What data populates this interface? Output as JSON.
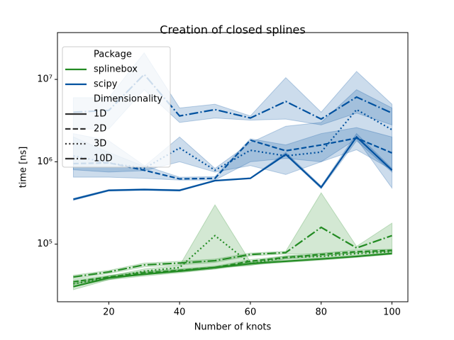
{
  "chart_data": {
    "type": "line",
    "title": "Creation of closed splines",
    "x_label": "Number of knots",
    "y_label": "time [ns]",
    "x": [
      10,
      20,
      30,
      40,
      50,
      60,
      70,
      80,
      90,
      100
    ],
    "xlim": [
      5.5,
      104.5
    ],
    "xticks": [
      20,
      40,
      60,
      80,
      100
    ],
    "ylim": [
      20000,
      37000000
    ],
    "yscale": "log",
    "yticks": [
      {
        "value": 100000,
        "label": "10⁵"
      },
      {
        "value": 1000000,
        "label": "10⁶"
      },
      {
        "value": 10000000,
        "label": "10⁷"
      }
    ],
    "legend_titles": [
      "Package",
      "Dimensionality"
    ],
    "legend_position": "upper left",
    "dimensionalities": [
      {
        "name": "1D",
        "dash": "solid"
      },
      {
        "name": "2D",
        "dash": "dashed"
      },
      {
        "name": "3D",
        "dash": "dotted"
      },
      {
        "name": "10D",
        "dash": "dashdot"
      }
    ],
    "packages": [
      {
        "name": "splinebox",
        "color": "#228b22",
        "series": [
          {
            "values": [
              30500,
              39000,
              43000,
              47000,
              52000,
              58000,
              62000,
              66000,
              71000,
              77000
            ],
            "band_low": [
              28000,
              37000,
              41000,
              45000,
              50000,
              56000,
              60000,
              64000,
              69000,
              75000
            ],
            "band_high": [
              33000,
              41000,
              45000,
              49000,
              54000,
              60000,
              64000,
              68000,
              73000,
              79000
            ]
          },
          {
            "values": [
              35000,
              40000,
              45000,
              48000,
              52000,
              62000,
              69000,
              75000,
              81000,
              84000
            ],
            "band_low": [
              33000,
              38000,
              43000,
              46000,
              50000,
              59000,
              66000,
              72000,
              78000,
              81000
            ],
            "band_high": [
              37000,
              42000,
              47000,
              50000,
              54000,
              65000,
              72000,
              78000,
              84000,
              87000
            ]
          },
          {
            "values": [
              33000,
              39000,
              47000,
              52000,
              127000,
              58000,
              69000,
              71000,
              77000,
              81000
            ],
            "band_low": [
              31000,
              37000,
              44000,
              49000,
              52000,
              55000,
              66000,
              68000,
              74000,
              78000
            ],
            "band_high": [
              35000,
              41000,
              50000,
              55000,
              300000,
              61000,
              72000,
              74000,
              80000,
              84000
            ]
          },
          {
            "values": [
              40000,
              46000,
              56000,
              59000,
              63000,
              75000,
              79000,
              160000,
              90000,
              127000
            ],
            "band_low": [
              38000,
              44000,
              53000,
              56000,
              60000,
              72000,
              76000,
              76000,
              86000,
              85000
            ],
            "band_high": [
              42000,
              48000,
              59000,
              62000,
              66000,
              78000,
              82000,
              420000,
              94000,
              180000
            ]
          }
        ]
      },
      {
        "name": "scipy",
        "color": "#00519f",
        "series": [
          {
            "values": [
              350000,
              450000,
              460000,
              450000,
              590000,
              630000,
              1230000,
              490000,
              2000000,
              790000
            ],
            "band_low": [
              340000,
              440000,
              450000,
              440000,
              580000,
              620000,
              1200000,
              470000,
              1800000,
              750000
            ],
            "band_high": [
              360000,
              460000,
              470000,
              460000,
              600000,
              640000,
              1300000,
              510000,
              2200000,
              830000
            ]
          },
          {
            "values": [
              950000,
              970000,
              790000,
              620000,
              630000,
              1830000,
              1360000,
              1600000,
              1940000,
              1280000
            ],
            "band_low": [
              650000,
              650000,
              630000,
              600000,
              600000,
              1000000,
              1100000,
              1000000,
              1400000,
              800000
            ],
            "band_high": [
              2200000,
              1800000,
              900000,
              650000,
              660000,
              1900000,
              1600000,
              2200000,
              2600000,
              2000000
            ]
          },
          {
            "values": [
              1180000,
              970000,
              830000,
              1470000,
              790000,
              1380000,
              1180000,
              1310000,
              4300000,
              2450000
            ],
            "band_low": [
              800000,
              750000,
              780000,
              1000000,
              750000,
              900000,
              700000,
              1000000,
              1900000,
              480000
            ],
            "band_high": [
              2000000,
              1300000,
              880000,
              2000000,
              830000,
              1700000,
              2700000,
              3000000,
              7500000,
              4500000
            ]
          },
          {
            "values": [
              4000000,
              4200000,
              11500000,
              3600000,
              4300000,
              3400000,
              5400000,
              3300000,
              6100000,
              3900000
            ],
            "band_low": [
              2500000,
              2500000,
              7500000,
              3000000,
              3400000,
              3200000,
              3300000,
              2800000,
              3900000,
              2800000
            ],
            "band_high": [
              6000000,
              6000000,
              21000000,
              4500000,
              5000000,
              3600000,
              10500000,
              4000000,
              12500000,
              5000000
            ]
          }
        ]
      }
    ]
  }
}
